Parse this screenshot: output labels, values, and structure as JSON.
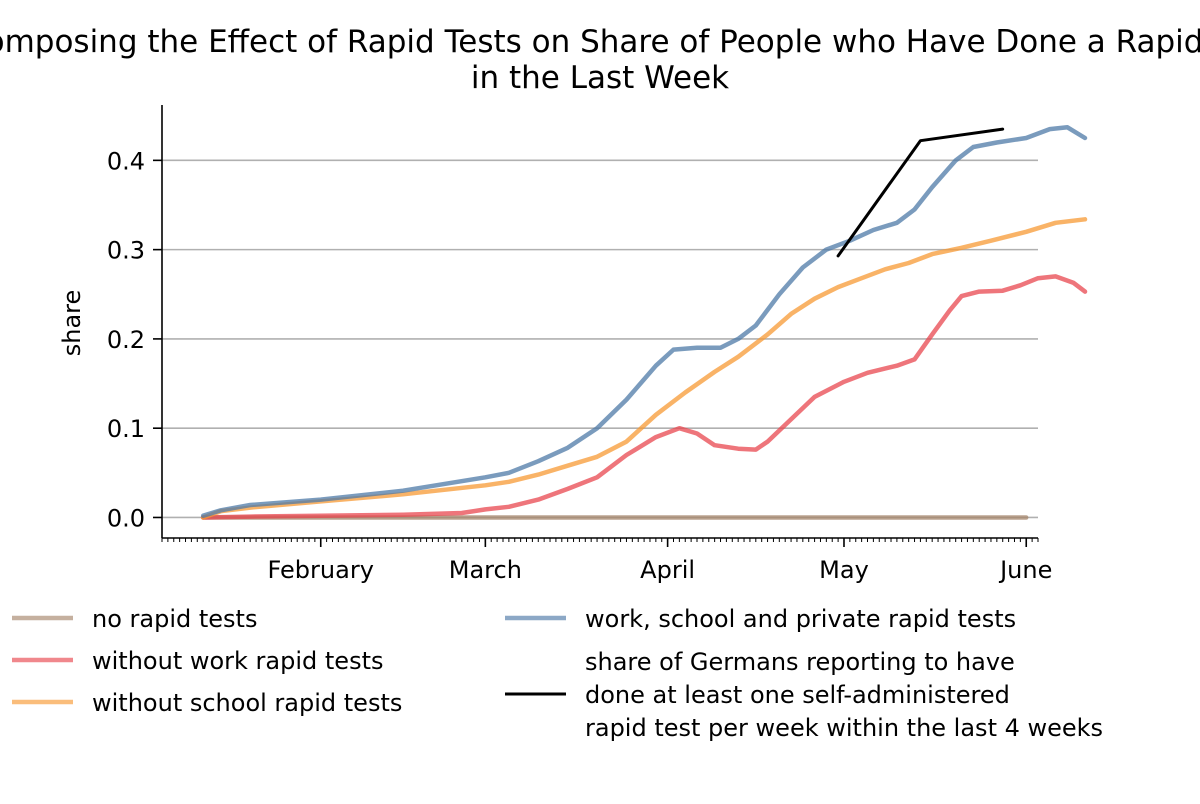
{
  "chart_data": {
    "type": "line",
    "title_line1": "Decomposing the Effect of Rapid Tests on Share of People who Have Done a Rapid Test",
    "title_line2": "in the Last Week",
    "xlabel": "",
    "ylabel": "share",
    "x_axis": "date",
    "xlim": [
      "2021-01-05",
      "2021-06-03"
    ],
    "ylim": [
      -0.023,
      0.462
    ],
    "yticks": [
      0.0,
      0.1,
      0.2,
      0.3,
      0.4
    ],
    "ytick_labels": [
      "0.0",
      "0.1",
      "0.2",
      "0.3",
      "0.4"
    ],
    "xticks": [
      "2021-02-01",
      "2021-03-01",
      "2021-04-01",
      "2021-05-01",
      "2021-06-01"
    ],
    "xtick_labels": [
      "February",
      "March",
      "April",
      "May",
      "June"
    ],
    "grid": "horizontal",
    "legend_position": "below",
    "series": [
      {
        "name": "no rapid tests",
        "color": "#a6866b",
        "points": [
          [
            "2021-01-12",
            0.0
          ],
          [
            "2021-06-01",
            0.0
          ]
        ]
      },
      {
        "name": "without work rapid tests",
        "color": "#e8474f",
        "points": [
          [
            "2021-01-12",
            0.0
          ],
          [
            "2021-01-20",
            0.001
          ],
          [
            "2021-02-01",
            0.002
          ],
          [
            "2021-02-15",
            0.003
          ],
          [
            "2021-02-25",
            0.005
          ],
          [
            "2021-03-01",
            0.009
          ],
          [
            "2021-03-05",
            0.012
          ],
          [
            "2021-03-10",
            0.02
          ],
          [
            "2021-03-15",
            0.032
          ],
          [
            "2021-03-20",
            0.045
          ],
          [
            "2021-03-25",
            0.07
          ],
          [
            "2021-03-30",
            0.09
          ],
          [
            "2021-04-03",
            0.1
          ],
          [
            "2021-04-06",
            0.094
          ],
          [
            "2021-04-09",
            0.081
          ],
          [
            "2021-04-13",
            0.077
          ],
          [
            "2021-04-16",
            0.076
          ],
          [
            "2021-04-18",
            0.085
          ],
          [
            "2021-04-22",
            0.11
          ],
          [
            "2021-04-26",
            0.135
          ],
          [
            "2021-05-01",
            0.152
          ],
          [
            "2021-05-05",
            0.162
          ],
          [
            "2021-05-10",
            0.17
          ],
          [
            "2021-05-13",
            0.177
          ],
          [
            "2021-05-16",
            0.205
          ],
          [
            "2021-05-19",
            0.232
          ],
          [
            "2021-05-21",
            0.248
          ],
          [
            "2021-05-24",
            0.253
          ],
          [
            "2021-05-28",
            0.254
          ],
          [
            "2021-05-31",
            0.26
          ],
          [
            "2021-06-03",
            0.268
          ],
          [
            "2021-06-06",
            0.27
          ],
          [
            "2021-06-09",
            0.263
          ],
          [
            "2021-06-11",
            0.253
          ]
        ]
      },
      {
        "name": "without school rapid tests",
        "color": "#f79a34",
        "points": [
          [
            "2021-01-12",
            0.0
          ],
          [
            "2021-01-15",
            0.007
          ],
          [
            "2021-01-20",
            0.011
          ],
          [
            "2021-02-01",
            0.018
          ],
          [
            "2021-02-15",
            0.026
          ],
          [
            "2021-03-01",
            0.036
          ],
          [
            "2021-03-05",
            0.04
          ],
          [
            "2021-03-10",
            0.048
          ],
          [
            "2021-03-15",
            0.058
          ],
          [
            "2021-03-20",
            0.068
          ],
          [
            "2021-03-25",
            0.085
          ],
          [
            "2021-03-30",
            0.115
          ],
          [
            "2021-04-04",
            0.14
          ],
          [
            "2021-04-09",
            0.163
          ],
          [
            "2021-04-13",
            0.18
          ],
          [
            "2021-04-18",
            0.205
          ],
          [
            "2021-04-22",
            0.228
          ],
          [
            "2021-04-26",
            0.245
          ],
          [
            "2021-04-30",
            0.258
          ],
          [
            "2021-05-04",
            0.268
          ],
          [
            "2021-05-08",
            0.278
          ],
          [
            "2021-05-12",
            0.285
          ],
          [
            "2021-05-16",
            0.295
          ],
          [
            "2021-05-21",
            0.302
          ],
          [
            "2021-05-26",
            0.31
          ],
          [
            "2021-06-01",
            0.32
          ],
          [
            "2021-06-06",
            0.33
          ],
          [
            "2021-06-11",
            0.334
          ]
        ]
      },
      {
        "name": "work, school and private rapid tests",
        "color": "#4e79a7",
        "points": [
          [
            "2021-01-12",
            0.002
          ],
          [
            "2021-01-15",
            0.008
          ],
          [
            "2021-01-20",
            0.014
          ],
          [
            "2021-02-01",
            0.02
          ],
          [
            "2021-02-15",
            0.03
          ],
          [
            "2021-03-01",
            0.045
          ],
          [
            "2021-03-05",
            0.05
          ],
          [
            "2021-03-10",
            0.063
          ],
          [
            "2021-03-15",
            0.078
          ],
          [
            "2021-03-20",
            0.1
          ],
          [
            "2021-03-25",
            0.132
          ],
          [
            "2021-03-30",
            0.17
          ],
          [
            "2021-04-02",
            0.188
          ],
          [
            "2021-04-06",
            0.19
          ],
          [
            "2021-04-10",
            0.19
          ],
          [
            "2021-04-13",
            0.2
          ],
          [
            "2021-04-16",
            0.215
          ],
          [
            "2021-04-20",
            0.25
          ],
          [
            "2021-04-24",
            0.28
          ],
          [
            "2021-04-28",
            0.3
          ],
          [
            "2021-05-02",
            0.31
          ],
          [
            "2021-05-06",
            0.322
          ],
          [
            "2021-05-10",
            0.33
          ],
          [
            "2021-05-13",
            0.345
          ],
          [
            "2021-05-16",
            0.37
          ],
          [
            "2021-05-20",
            0.4
          ],
          [
            "2021-05-23",
            0.415
          ],
          [
            "2021-05-27",
            0.42
          ],
          [
            "2021-06-01",
            0.425
          ],
          [
            "2021-06-05",
            0.435
          ],
          [
            "2021-06-08",
            0.437
          ],
          [
            "2021-06-11",
            0.425
          ]
        ]
      },
      {
        "name": "share of Germans reporting to have\ndone at least one self-administered\nrapid test per week within the last 4 weeks",
        "color": "#000000",
        "points": [
          [
            "2021-04-30",
            0.293
          ],
          [
            "2021-05-14",
            0.422
          ],
          [
            "2021-05-28",
            0.435
          ]
        ]
      }
    ],
    "legend": [
      {
        "series": 0,
        "label": "no rapid tests"
      },
      {
        "series": 1,
        "label": "without work rapid tests"
      },
      {
        "series": 2,
        "label": "without school rapid tests"
      },
      {
        "series": 3,
        "label": "work, school and private rapid tests"
      },
      {
        "series": 4,
        "lines": [
          "share of Germans reporting to have",
          "done at least one self-administered",
          "rapid test per week within the last 4 weeks"
        ]
      }
    ]
  }
}
